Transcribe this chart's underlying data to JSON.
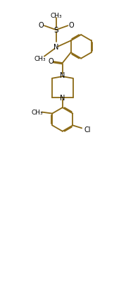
{
  "background_color": "#ffffff",
  "bond_color": "#8B6914",
  "figsize": [
    1.79,
    4.1
  ],
  "dpi": 100,
  "xlim": [
    0,
    9
  ],
  "ylim": [
    0,
    20
  ],
  "lw": 1.3,
  "label_fontsize": 7.0,
  "small_fontsize": 6.5
}
